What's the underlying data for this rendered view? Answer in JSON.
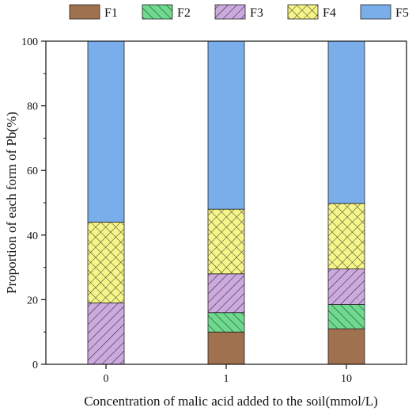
{
  "chart_data": {
    "type": "bar",
    "stacked": true,
    "categories": [
      "0",
      "1",
      "10"
    ],
    "series": [
      {
        "name": "F1",
        "values": [
          0,
          10,
          11
        ],
        "color": "#a0714f",
        "pattern": "solid"
      },
      {
        "name": "F2",
        "values": [
          0,
          6,
          7.5
        ],
        "color": "#6fd98f",
        "pattern": "forward-hatch"
      },
      {
        "name": "F3",
        "values": [
          19,
          12,
          11
        ],
        "color": "#ccaade",
        "pattern": "back-hatch"
      },
      {
        "name": "F4",
        "values": [
          25,
          20,
          20.3
        ],
        "color": "#f5f58a",
        "pattern": "crosshatch"
      },
      {
        "name": "F5",
        "values": [
          56,
          52,
          50.2
        ],
        "color": "#7aaeea",
        "pattern": "solid"
      }
    ],
    "xlabel": "Concentration of malic acid added to the soil(mmol/L)",
    "ylabel": "Proportion of each form of Pb(%)",
    "ylim": [
      0,
      100
    ],
    "yticks": [
      "0",
      "20",
      "40",
      "60",
      "80",
      "100"
    ],
    "legend_position": "top",
    "grid": false
  }
}
